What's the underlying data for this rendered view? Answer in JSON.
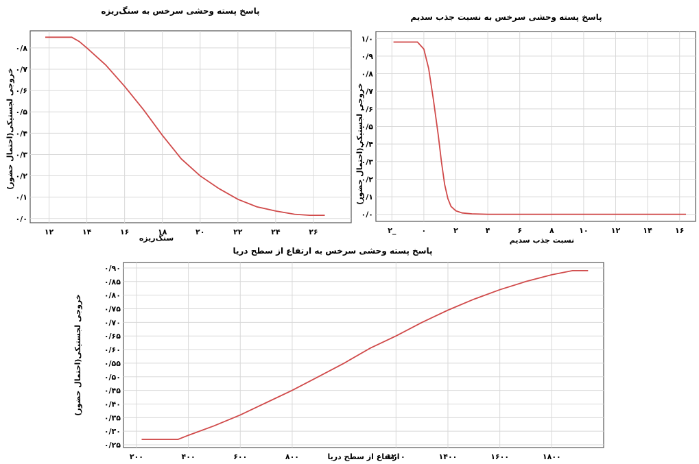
{
  "chart_data": [
    {
      "type": "line",
      "title": "پاسخ پسته وحشی سرخس به سنگ‌ریزه",
      "xlabel": "سنگ‌ریزه",
      "ylabel": "خروجی لجستیکی(احتمال حضور)",
      "xlim": [
        11,
        28
      ],
      "ylim": [
        -0.02,
        0.88
      ],
      "x_ticks": [
        12,
        14,
        16,
        18,
        20,
        22,
        24,
        26
      ],
      "x_tick_labels": [
        "۱۲",
        "۱۴",
        "۱۶",
        "۱۸",
        "۲۰",
        "۲۲",
        "۲۴",
        "۲۶"
      ],
      "y_ticks": [
        0,
        0.1,
        0.2,
        0.3,
        0.4,
        0.5,
        0.6,
        0.7,
        0.8
      ],
      "y_tick_labels": [
        "۰/۰",
        "۰/۱",
        "۰/۲",
        "۰/۳",
        "۰/۴",
        "۰/۵",
        "۰/۶",
        "۰/۷",
        "۰/۸"
      ],
      "grid": true,
      "series": [
        {
          "color": "#d04a4a",
          "x": [
            11.8,
            13.2,
            13.6,
            14,
            15,
            16,
            17,
            18,
            19,
            20,
            21,
            22,
            23,
            24,
            25,
            25.8,
            26.6
          ],
          "y": [
            0.85,
            0.85,
            0.83,
            0.8,
            0.72,
            0.62,
            0.51,
            0.39,
            0.28,
            0.2,
            0.14,
            0.09,
            0.055,
            0.035,
            0.02,
            0.015,
            0.015
          ]
        }
      ]
    },
    {
      "type": "line",
      "title": "پاسخ پسته وحشی سرخس به  نسبت جذب سدیم",
      "xlabel": "نسبت جذب سدیم",
      "ylabel": "خروجی لجستیکی(احتمال حضور)",
      "xlim": [
        -3,
        17
      ],
      "ylim": [
        -0.04,
        1.04
      ],
      "x_ticks": [
        -2,
        0,
        2,
        4,
        6,
        8,
        10,
        12,
        14,
        16
      ],
      "x_tick_labels": [
        "۲_",
        "۰",
        "۲",
        "۴",
        "۶",
        "۸",
        "۱۰",
        "۱۲",
        "۱۴",
        "۱۶"
      ],
      "y_ticks": [
        0,
        0.1,
        0.2,
        0.3,
        0.4,
        0.5,
        0.6,
        0.7,
        0.8,
        0.9,
        1.0
      ],
      "y_tick_labels": [
        "۰/۰",
        "۰/۱",
        "۰/۲",
        "۰/۳",
        "۰/۴",
        "۰/۵",
        "۰/۶",
        "۰/۷",
        "۰/۸",
        "۰/۹",
        "۱/۰"
      ],
      "grid": true,
      "series": [
        {
          "color": "#d04a4a",
          "x": [
            -1.9,
            -0.4,
            0,
            0.3,
            0.6,
            0.9,
            1.1,
            1.3,
            1.5,
            1.7,
            2.0,
            2.4,
            3.0,
            4.0,
            16.4
          ],
          "y": [
            0.98,
            0.98,
            0.94,
            0.83,
            0.65,
            0.45,
            0.3,
            0.17,
            0.09,
            0.045,
            0.02,
            0.008,
            0.003,
            0.0,
            0.0
          ]
        }
      ]
    },
    {
      "type": "line",
      "title": "پاسخ پسته وحشی سرخس به  ارتفاع از سطح دریا",
      "xlabel": "ارتفاع از سطح دریا",
      "ylabel": "خروجی لجستیکی(احتمال حضور)",
      "xlim": [
        150,
        2000
      ],
      "ylim": [
        0.24,
        0.92
      ],
      "x_ticks": [
        200,
        400,
        600,
        800,
        1200,
        1400,
        1600,
        1800
      ],
      "x_tick_labels": [
        "۲۰۰",
        "۴۰۰",
        "۶۰۰",
        "۸۰۰",
        "۱۲۰۰",
        "۱۴۰۰",
        "۱۶۰۰",
        "۱۸۰۰"
      ],
      "y_ticks": [
        0.25,
        0.3,
        0.35,
        0.4,
        0.45,
        0.5,
        0.55,
        0.6,
        0.65,
        0.7,
        0.75,
        0.8,
        0.85,
        0.9
      ],
      "y_tick_labels": [
        "۰/۲۵",
        "۰/۳۰",
        "۰/۳۵",
        "۰/۴۰",
        "۰/۴۵",
        "۰/۵۰",
        "۰/۵۵",
        "۰/۶۰",
        "۰/۶۵",
        "۰/۷۰",
        "۰/۷۵",
        "۰/۸۰",
        "۰/۸۵",
        "۰/۹۰"
      ],
      "grid": true,
      "series": [
        {
          "color": "#d04a4a",
          "x": [
            220,
            360,
            400,
            500,
            600,
            700,
            800,
            900,
            1000,
            1100,
            1200,
            1300,
            1400,
            1500,
            1600,
            1700,
            1800,
            1880,
            1940
          ],
          "y": [
            0.27,
            0.27,
            0.285,
            0.32,
            0.36,
            0.405,
            0.45,
            0.5,
            0.55,
            0.605,
            0.65,
            0.7,
            0.745,
            0.785,
            0.82,
            0.85,
            0.875,
            0.89,
            0.89
          ]
        }
      ]
    }
  ]
}
